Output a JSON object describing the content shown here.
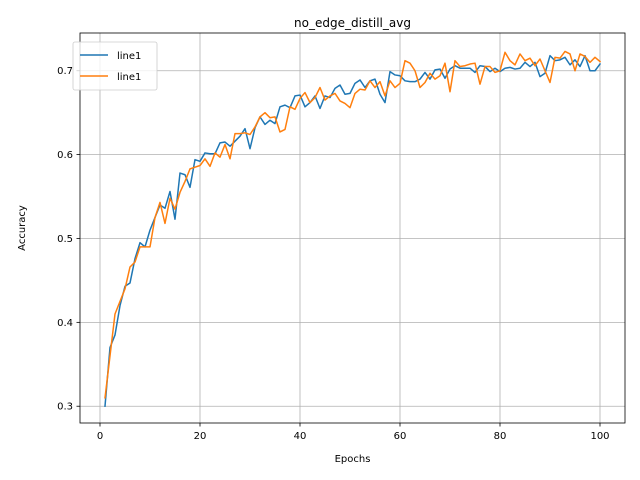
{
  "chart_data": {
    "type": "line",
    "title": "no_edge_distill_avg",
    "xlabel": "Epochs",
    "ylabel": "Accuracy",
    "xlim": [
      -4,
      105
    ],
    "ylim": [
      0.28,
      0.745
    ],
    "xticks": [
      0,
      20,
      40,
      60,
      80,
      100
    ],
    "yticks": [
      0.3,
      0.4,
      0.5,
      0.6,
      0.7
    ],
    "xtick_labels": [
      "0",
      "20",
      "40",
      "60",
      "80",
      "100"
    ],
    "ytick_labels": [
      "0.3",
      "0.4",
      "0.5",
      "0.6",
      "0.7"
    ],
    "grid": true,
    "legend_position": "upper left",
    "series": [
      {
        "name": "line1",
        "color": "#1f77b4",
        "x": [
          1,
          2,
          3,
          4,
          5,
          6,
          7,
          8,
          9,
          10,
          11,
          12,
          13,
          14,
          15,
          16,
          17,
          18,
          19,
          20,
          21,
          22,
          23,
          24,
          25,
          26,
          27,
          28,
          29,
          30,
          31,
          32,
          33,
          34,
          35,
          36,
          37,
          38,
          39,
          40,
          41,
          42,
          43,
          44,
          45,
          46,
          47,
          48,
          49,
          50,
          51,
          52,
          53,
          54,
          55,
          56,
          57,
          58,
          59,
          60,
          61,
          62,
          63,
          64,
          65,
          66,
          67,
          68,
          69,
          70,
          71,
          72,
          73,
          74,
          75,
          76,
          77,
          78,
          79,
          80,
          81,
          82,
          83,
          84,
          85,
          86,
          87,
          88,
          89,
          90,
          91,
          92,
          93,
          94,
          95,
          96,
          97,
          98,
          99,
          100
        ],
        "y": [
          0.3,
          0.37,
          0.385,
          0.42,
          0.443,
          0.447,
          0.476,
          0.495,
          0.49,
          0.51,
          0.525,
          0.54,
          0.536,
          0.556,
          0.523,
          0.578,
          0.576,
          0.561,
          0.594,
          0.592,
          0.602,
          0.601,
          0.601,
          0.614,
          0.615,
          0.61,
          0.616,
          0.622,
          0.631,
          0.607,
          0.632,
          0.645,
          0.636,
          0.641,
          0.637,
          0.657,
          0.659,
          0.656,
          0.67,
          0.671,
          0.657,
          0.662,
          0.67,
          0.655,
          0.67,
          0.668,
          0.679,
          0.683,
          0.672,
          0.673,
          0.685,
          0.689,
          0.68,
          0.688,
          0.69,
          0.672,
          0.662,
          0.699,
          0.695,
          0.694,
          0.688,
          0.687,
          0.687,
          0.69,
          0.698,
          0.69,
          0.701,
          0.702,
          0.691,
          0.702,
          0.706,
          0.703,
          0.703,
          0.703,
          0.698,
          0.706,
          0.705,
          0.699,
          0.703,
          0.699,
          0.703,
          0.704,
          0.702,
          0.703,
          0.71,
          0.705,
          0.71,
          0.693,
          0.697,
          0.718,
          0.712,
          0.713,
          0.716,
          0.707,
          0.713,
          0.705,
          0.718,
          0.7,
          0.7,
          0.708
        ]
      },
      {
        "name": "line1",
        "color": "#ff7f0e",
        "x": [
          1,
          2,
          3,
          4,
          5,
          6,
          7,
          8,
          9,
          10,
          11,
          12,
          13,
          14,
          15,
          16,
          17,
          18,
          19,
          20,
          21,
          22,
          23,
          24,
          25,
          26,
          27,
          28,
          29,
          30,
          31,
          32,
          33,
          34,
          35,
          36,
          37,
          38,
          39,
          40,
          41,
          42,
          43,
          44,
          45,
          46,
          47,
          48,
          49,
          50,
          51,
          52,
          53,
          54,
          55,
          56,
          57,
          58,
          59,
          60,
          61,
          62,
          63,
          64,
          65,
          66,
          67,
          68,
          69,
          70,
          71,
          72,
          73,
          74,
          75,
          76,
          77,
          78,
          79,
          80,
          81,
          82,
          83,
          84,
          85,
          86,
          87,
          88,
          89,
          90,
          91,
          92,
          93,
          94,
          95,
          96,
          97,
          98,
          99,
          100
        ],
        "y": [
          0.31,
          0.36,
          0.41,
          0.425,
          0.44,
          0.466,
          0.472,
          0.49,
          0.49,
          0.49,
          0.525,
          0.543,
          0.518,
          0.548,
          0.535,
          0.555,
          0.568,
          0.583,
          0.585,
          0.587,
          0.595,
          0.586,
          0.602,
          0.597,
          0.612,
          0.595,
          0.625,
          0.625,
          0.626,
          0.624,
          0.633,
          0.645,
          0.65,
          0.644,
          0.645,
          0.627,
          0.63,
          0.657,
          0.654,
          0.667,
          0.674,
          0.662,
          0.668,
          0.68,
          0.665,
          0.67,
          0.673,
          0.664,
          0.661,
          0.656,
          0.673,
          0.678,
          0.677,
          0.688,
          0.68,
          0.687,
          0.67,
          0.688,
          0.68,
          0.685,
          0.712,
          0.709,
          0.7,
          0.68,
          0.686,
          0.697,
          0.69,
          0.694,
          0.709,
          0.675,
          0.712,
          0.705,
          0.706,
          0.708,
          0.709,
          0.684,
          0.705,
          0.705,
          0.698,
          0.7,
          0.722,
          0.712,
          0.707,
          0.72,
          0.712,
          0.715,
          0.706,
          0.714,
          0.7,
          0.686,
          0.716,
          0.715,
          0.723,
          0.72,
          0.7,
          0.72,
          0.717,
          0.71,
          0.716,
          0.711
        ]
      }
    ]
  }
}
